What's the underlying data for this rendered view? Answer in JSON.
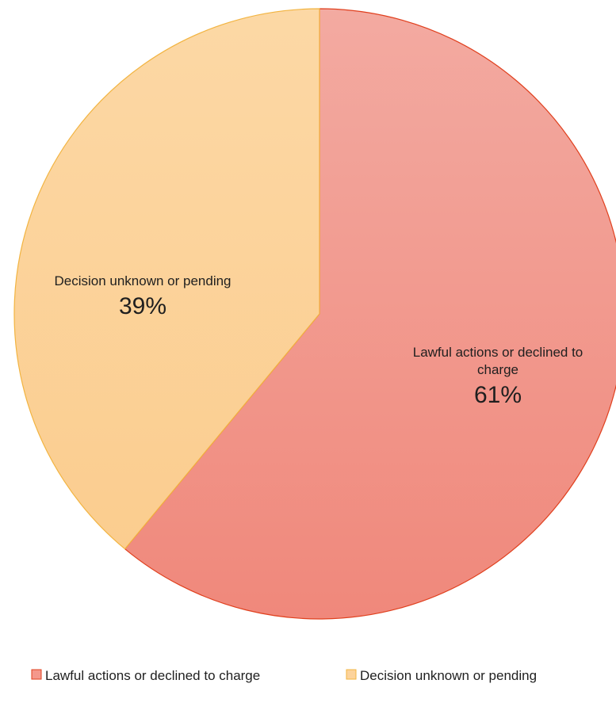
{
  "chart_data": {
    "type": "pie",
    "title": "",
    "legend_position": "bottom",
    "slices": [
      {
        "label": "Lawful actions or declined to charge",
        "label_lines": [
          "Lawful actions or declined to",
          "charge"
        ],
        "value": 61,
        "value_label": "61%",
        "color": "#f4988c",
        "color_light": "#f3aaa1",
        "color_dark": "#f0887b",
        "border": "#e0401e"
      },
      {
        "label": "Decision unknown or pending",
        "label_lines": [
          "Decision unknown or pending"
        ],
        "value": 39,
        "value_label": "39%",
        "color": "#fcd39b",
        "color_light": "#fcd8a5",
        "color_dark": "#fbcd8f",
        "border": "#f2b441"
      }
    ],
    "legend": [
      "Lawful actions or declined to charge",
      "Decision unknown or pending"
    ]
  }
}
